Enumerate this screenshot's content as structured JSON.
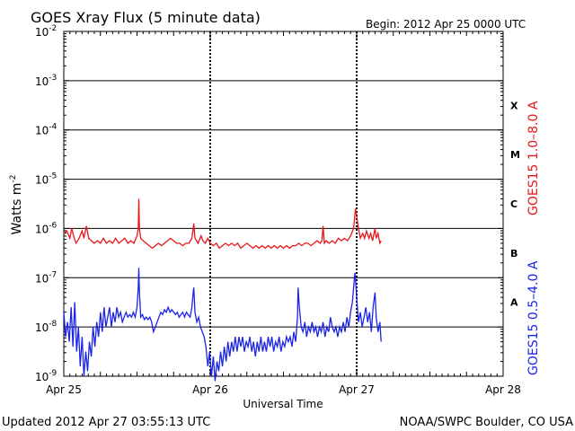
{
  "chart_data": {
    "type": "line",
    "title": "GOES Xray Flux (5 minute data)",
    "begin_label": "Begin:  2012 Apr 25 0000 UTC",
    "xlabel": "Universal Time",
    "ylabel": "Watts m",
    "ylabel_exp": "-2",
    "y_scale": "log",
    "ylim": [
      1e-09,
      0.01
    ],
    "y_ticks": [
      {
        "exp": -2,
        "label": "-2"
      },
      {
        "exp": -3,
        "label": "-3"
      },
      {
        "exp": -4,
        "label": "-4"
      },
      {
        "exp": -5,
        "label": "-5"
      },
      {
        "exp": -6,
        "label": "-6"
      },
      {
        "exp": -7,
        "label": "-7"
      },
      {
        "exp": -8,
        "label": "-8"
      },
      {
        "exp": -9,
        "label": "-9"
      }
    ],
    "y_tick_base": "10",
    "x_ticks": [
      "Apr 25",
      "Apr 26",
      "Apr 27",
      "Apr 28"
    ],
    "xlim_hours": [
      0,
      72
    ],
    "grid": "horizontal lines at each decade",
    "flare_classes": [
      {
        "label": "X",
        "exp": -3.5
      },
      {
        "label": "M",
        "exp": -4.5
      },
      {
        "label": "C",
        "exp": -5.5
      },
      {
        "label": "B",
        "exp": -6.5
      },
      {
        "label": "A",
        "exp": -7.5
      }
    ],
    "series": [
      {
        "name": "GOES15 1.0–8.0 A",
        "color": "#e8161b",
        "points": [
          [
            0.0,
            -6.1
          ],
          [
            0.5,
            -6.05
          ],
          [
            1.0,
            -6.2
          ],
          [
            1.3,
            -6.0
          ],
          [
            1.6,
            -6.15
          ],
          [
            2.0,
            -6.3
          ],
          [
            2.5,
            -6.2
          ],
          [
            3.0,
            -6.05
          ],
          [
            3.3,
            -6.2
          ],
          [
            3.7,
            -5.95
          ],
          [
            4.1,
            -6.2
          ],
          [
            4.5,
            -6.25
          ],
          [
            5.0,
            -6.3
          ],
          [
            5.5,
            -6.25
          ],
          [
            6.0,
            -6.3
          ],
          [
            6.5,
            -6.2
          ],
          [
            7.0,
            -6.3
          ],
          [
            7.5,
            -6.25
          ],
          [
            8.0,
            -6.3
          ],
          [
            8.5,
            -6.2
          ],
          [
            9.0,
            -6.3
          ],
          [
            9.5,
            -6.25
          ],
          [
            10.0,
            -6.2
          ],
          [
            10.5,
            -6.3
          ],
          [
            11.0,
            -6.25
          ],
          [
            11.5,
            -6.3
          ],
          [
            12.0,
            -6.15
          ],
          [
            12.2,
            -6.0
          ],
          [
            12.3,
            -5.4
          ],
          [
            12.4,
            -6.0
          ],
          [
            12.6,
            -6.2
          ],
          [
            13.0,
            -6.25
          ],
          [
            13.5,
            -6.3
          ],
          [
            14.0,
            -6.35
          ],
          [
            14.5,
            -6.4
          ],
          [
            15.0,
            -6.35
          ],
          [
            15.5,
            -6.3
          ],
          [
            16.0,
            -6.35
          ],
          [
            16.5,
            -6.3
          ],
          [
            17.0,
            -6.25
          ],
          [
            17.5,
            -6.2
          ],
          [
            18.0,
            -6.25
          ],
          [
            18.5,
            -6.3
          ],
          [
            19.0,
            -6.3
          ],
          [
            19.5,
            -6.35
          ],
          [
            20.0,
            -6.3
          ],
          [
            20.5,
            -6.3
          ],
          [
            21.0,
            -6.2
          ],
          [
            21.3,
            -5.9
          ],
          [
            21.5,
            -6.2
          ],
          [
            22.0,
            -6.3
          ],
          [
            22.5,
            -6.15
          ],
          [
            22.8,
            -6.25
          ],
          [
            23.2,
            -6.3
          ],
          [
            23.6,
            -6.2
          ],
          [
            24.0,
            -6.3
          ],
          [
            24.5,
            -6.35
          ],
          [
            25.0,
            -6.3
          ],
          [
            25.5,
            -6.4
          ],
          [
            26.0,
            -6.35
          ],
          [
            26.5,
            -6.3
          ],
          [
            27.0,
            -6.35
          ],
          [
            27.5,
            -6.3
          ],
          [
            28.0,
            -6.35
          ],
          [
            28.5,
            -6.3
          ],
          [
            29.0,
            -6.4
          ],
          [
            29.5,
            -6.35
          ],
          [
            30.0,
            -6.3
          ],
          [
            30.5,
            -6.35
          ],
          [
            31.0,
            -6.4
          ],
          [
            31.5,
            -6.35
          ],
          [
            32.0,
            -6.4
          ],
          [
            32.5,
            -6.35
          ],
          [
            33.0,
            -6.4
          ],
          [
            33.5,
            -6.35
          ],
          [
            34.0,
            -6.4
          ],
          [
            34.5,
            -6.35
          ],
          [
            35.0,
            -6.4
          ],
          [
            35.5,
            -6.35
          ],
          [
            36.0,
            -6.4
          ],
          [
            36.5,
            -6.35
          ],
          [
            37.0,
            -6.4
          ],
          [
            37.5,
            -6.35
          ],
          [
            38.0,
            -6.35
          ],
          [
            38.5,
            -6.3
          ],
          [
            39.0,
            -6.35
          ],
          [
            39.5,
            -6.3
          ],
          [
            40.0,
            -6.3
          ],
          [
            40.5,
            -6.35
          ],
          [
            41.0,
            -6.3
          ],
          [
            41.5,
            -6.25
          ],
          [
            42.0,
            -6.3
          ],
          [
            42.3,
            -6.25
          ],
          [
            42.5,
            -5.95
          ],
          [
            42.7,
            -6.3
          ],
          [
            43.0,
            -6.25
          ],
          [
            43.5,
            -6.3
          ],
          [
            44.0,
            -6.25
          ],
          [
            44.5,
            -6.3
          ],
          [
            45.0,
            -6.2
          ],
          [
            45.5,
            -6.25
          ],
          [
            46.0,
            -6.2
          ],
          [
            46.5,
            -6.25
          ],
          [
            47.0,
            -6.15
          ],
          [
            47.5,
            -6.0
          ],
          [
            47.8,
            -5.6
          ],
          [
            48.0,
            -5.75
          ],
          [
            48.3,
            -6.0
          ],
          [
            48.6,
            -6.2
          ],
          [
            49.0,
            -6.1
          ],
          [
            49.3,
            -6.2
          ],
          [
            49.6,
            -6.05
          ],
          [
            50.0,
            -6.2
          ],
          [
            50.3,
            -6.1
          ],
          [
            50.6,
            -6.25
          ],
          [
            51.0,
            -6.0
          ],
          [
            51.2,
            -6.2
          ],
          [
            51.5,
            -6.1
          ],
          [
            51.8,
            -6.3
          ],
          [
            52.0,
            -6.25
          ]
        ]
      },
      {
        "name": "GOES15 0.5–4.0 A",
        "color": "#1a23e8",
        "points": [
          [
            0.0,
            -7.7
          ],
          [
            0.3,
            -8.2
          ],
          [
            0.6,
            -7.9
          ],
          [
            0.9,
            -8.3
          ],
          [
            1.2,
            -7.6
          ],
          [
            1.5,
            -8.4
          ],
          [
            1.8,
            -7.5
          ],
          [
            2.1,
            -8.5
          ],
          [
            2.4,
            -8.0
          ],
          [
            2.7,
            -8.8
          ],
          [
            3.0,
            -8.2
          ],
          [
            3.3,
            -9.0
          ],
          [
            3.6,
            -8.5
          ],
          [
            3.9,
            -8.9
          ],
          [
            4.2,
            -8.3
          ],
          [
            4.5,
            -8.6
          ],
          [
            4.8,
            -8.0
          ],
          [
            5.1,
            -8.4
          ],
          [
            5.4,
            -7.9
          ],
          [
            5.7,
            -8.2
          ],
          [
            6.0,
            -7.7
          ],
          [
            6.3,
            -8.1
          ],
          [
            6.6,
            -7.6
          ],
          [
            6.9,
            -8.0
          ],
          [
            7.2,
            -7.8
          ],
          [
            7.5,
            -7.6
          ],
          [
            7.8,
            -8.0
          ],
          [
            8.1,
            -7.7
          ],
          [
            8.4,
            -7.9
          ],
          [
            8.7,
            -7.6
          ],
          [
            9.0,
            -7.8
          ],
          [
            9.3,
            -7.7
          ],
          [
            9.6,
            -7.9
          ],
          [
            9.9,
            -7.8
          ],
          [
            10.2,
            -7.7
          ],
          [
            10.5,
            -7.8
          ],
          [
            10.8,
            -7.75
          ],
          [
            11.1,
            -7.8
          ],
          [
            11.4,
            -7.7
          ],
          [
            11.7,
            -7.8
          ],
          [
            12.0,
            -7.6
          ],
          [
            12.2,
            -7.2
          ],
          [
            12.3,
            -6.8
          ],
          [
            12.4,
            -7.3
          ],
          [
            12.6,
            -7.8
          ],
          [
            12.9,
            -7.75
          ],
          [
            13.2,
            -7.85
          ],
          [
            13.5,
            -7.8
          ],
          [
            13.8,
            -7.85
          ],
          [
            14.1,
            -7.8
          ],
          [
            14.4,
            -7.9
          ],
          [
            14.7,
            -8.1
          ],
          [
            15.0,
            -8.0
          ],
          [
            15.3,
            -7.9
          ],
          [
            15.6,
            -7.8
          ],
          [
            15.9,
            -7.7
          ],
          [
            16.2,
            -7.75
          ],
          [
            16.5,
            -7.65
          ],
          [
            16.8,
            -7.7
          ],
          [
            17.1,
            -7.6
          ],
          [
            17.4,
            -7.7
          ],
          [
            17.7,
            -7.65
          ],
          [
            18.0,
            -7.7
          ],
          [
            18.3,
            -7.75
          ],
          [
            18.6,
            -7.7
          ],
          [
            18.9,
            -7.8
          ],
          [
            19.2,
            -7.75
          ],
          [
            19.5,
            -7.7
          ],
          [
            19.8,
            -7.8
          ],
          [
            20.1,
            -7.7
          ],
          [
            20.4,
            -7.75
          ],
          [
            20.7,
            -7.8
          ],
          [
            21.0,
            -7.6
          ],
          [
            21.2,
            -7.3
          ],
          [
            21.3,
            -7.2
          ],
          [
            21.5,
            -7.7
          ],
          [
            21.8,
            -7.9
          ],
          [
            22.1,
            -7.8
          ],
          [
            22.4,
            -8.0
          ],
          [
            22.7,
            -8.1
          ],
          [
            23.0,
            -8.2
          ],
          [
            23.3,
            -8.4
          ],
          [
            23.6,
            -8.8
          ],
          [
            23.9,
            -8.5
          ],
          [
            24.2,
            -9.0
          ],
          [
            24.5,
            -8.6
          ],
          [
            24.8,
            -9.1
          ],
          [
            25.1,
            -8.7
          ],
          [
            25.4,
            -8.9
          ],
          [
            25.7,
            -8.5
          ],
          [
            26.0,
            -8.8
          ],
          [
            26.3,
            -8.4
          ],
          [
            26.6,
            -8.7
          ],
          [
            26.9,
            -8.3
          ],
          [
            27.2,
            -8.6
          ],
          [
            27.5,
            -8.3
          ],
          [
            27.8,
            -8.5
          ],
          [
            28.1,
            -8.2
          ],
          [
            28.4,
            -8.5
          ],
          [
            28.7,
            -8.2
          ],
          [
            29.0,
            -8.4
          ],
          [
            29.3,
            -8.2
          ],
          [
            29.6,
            -8.5
          ],
          [
            29.9,
            -8.3
          ],
          [
            30.2,
            -8.4
          ],
          [
            30.5,
            -8.2
          ],
          [
            30.8,
            -8.5
          ],
          [
            31.1,
            -8.3
          ],
          [
            31.4,
            -8.6
          ],
          [
            31.7,
            -8.3
          ],
          [
            32.0,
            -8.5
          ],
          [
            32.3,
            -8.2
          ],
          [
            32.6,
            -8.5
          ],
          [
            32.9,
            -8.3
          ],
          [
            33.2,
            -8.5
          ],
          [
            33.5,
            -8.2
          ],
          [
            33.8,
            -8.4
          ],
          [
            34.1,
            -8.2
          ],
          [
            34.4,
            -8.5
          ],
          [
            34.7,
            -8.3
          ],
          [
            35.0,
            -8.4
          ],
          [
            35.3,
            -8.2
          ],
          [
            35.6,
            -8.5
          ],
          [
            35.9,
            -8.3
          ],
          [
            36.2,
            -8.4
          ],
          [
            36.5,
            -8.2
          ],
          [
            36.8,
            -8.3
          ],
          [
            37.1,
            -8.2
          ],
          [
            37.4,
            -8.4
          ],
          [
            37.7,
            -8.1
          ],
          [
            38.0,
            -8.3
          ],
          [
            38.3,
            -7.8
          ],
          [
            38.4,
            -7.2
          ],
          [
            38.6,
            -7.6
          ],
          [
            38.9,
            -8.0
          ],
          [
            39.2,
            -8.1
          ],
          [
            39.5,
            -7.9
          ],
          [
            39.8,
            -8.2
          ],
          [
            40.1,
            -8.0
          ],
          [
            40.4,
            -8.1
          ],
          [
            40.7,
            -7.9
          ],
          [
            41.0,
            -8.1
          ],
          [
            41.3,
            -8.0
          ],
          [
            41.6,
            -8.2
          ],
          [
            41.9,
            -8.0
          ],
          [
            42.2,
            -8.1
          ],
          [
            42.5,
            -7.9
          ],
          [
            42.8,
            -8.2
          ],
          [
            43.1,
            -8.0
          ],
          [
            43.4,
            -8.1
          ],
          [
            43.7,
            -7.8
          ],
          [
            44.0,
            -8.0
          ],
          [
            44.3,
            -8.1
          ],
          [
            44.6,
            -8.0
          ],
          [
            44.9,
            -8.2
          ],
          [
            45.2,
            -8.0
          ],
          [
            45.5,
            -8.1
          ],
          [
            45.8,
            -7.9
          ],
          [
            46.1,
            -8.1
          ],
          [
            46.4,
            -7.8
          ],
          [
            46.7,
            -8.0
          ],
          [
            47.0,
            -7.7
          ],
          [
            47.3,
            -7.5
          ],
          [
            47.5,
            -7.2
          ],
          [
            47.7,
            -6.9
          ],
          [
            47.8,
            -7.0
          ],
          [
            48.0,
            -7.4
          ],
          [
            48.3,
            -7.9
          ],
          [
            48.6,
            -7.7
          ],
          [
            48.9,
            -8.0
          ],
          [
            49.2,
            -7.8
          ],
          [
            49.5,
            -7.6
          ],
          [
            49.8,
            -7.9
          ],
          [
            50.1,
            -7.7
          ],
          [
            50.4,
            -8.1
          ],
          [
            50.7,
            -7.6
          ],
          [
            51.0,
            -7.3
          ],
          [
            51.2,
            -7.8
          ],
          [
            51.5,
            -8.1
          ],
          [
            51.8,
            -7.9
          ],
          [
            52.0,
            -8.3
          ]
        ]
      }
    ]
  },
  "side_labels": {
    "red": "GOES15 1.0–8.0 A",
    "blue": "GOES15 0.5–4.0 A"
  },
  "footer": {
    "updated": "Updated 2012 Apr 27 03:55:13 UTC",
    "credit": "NOAA/SWPC Boulder, CO USA"
  },
  "colors": {
    "red": "#e8161b",
    "blue": "#1a23e8",
    "axis": "#000000"
  }
}
